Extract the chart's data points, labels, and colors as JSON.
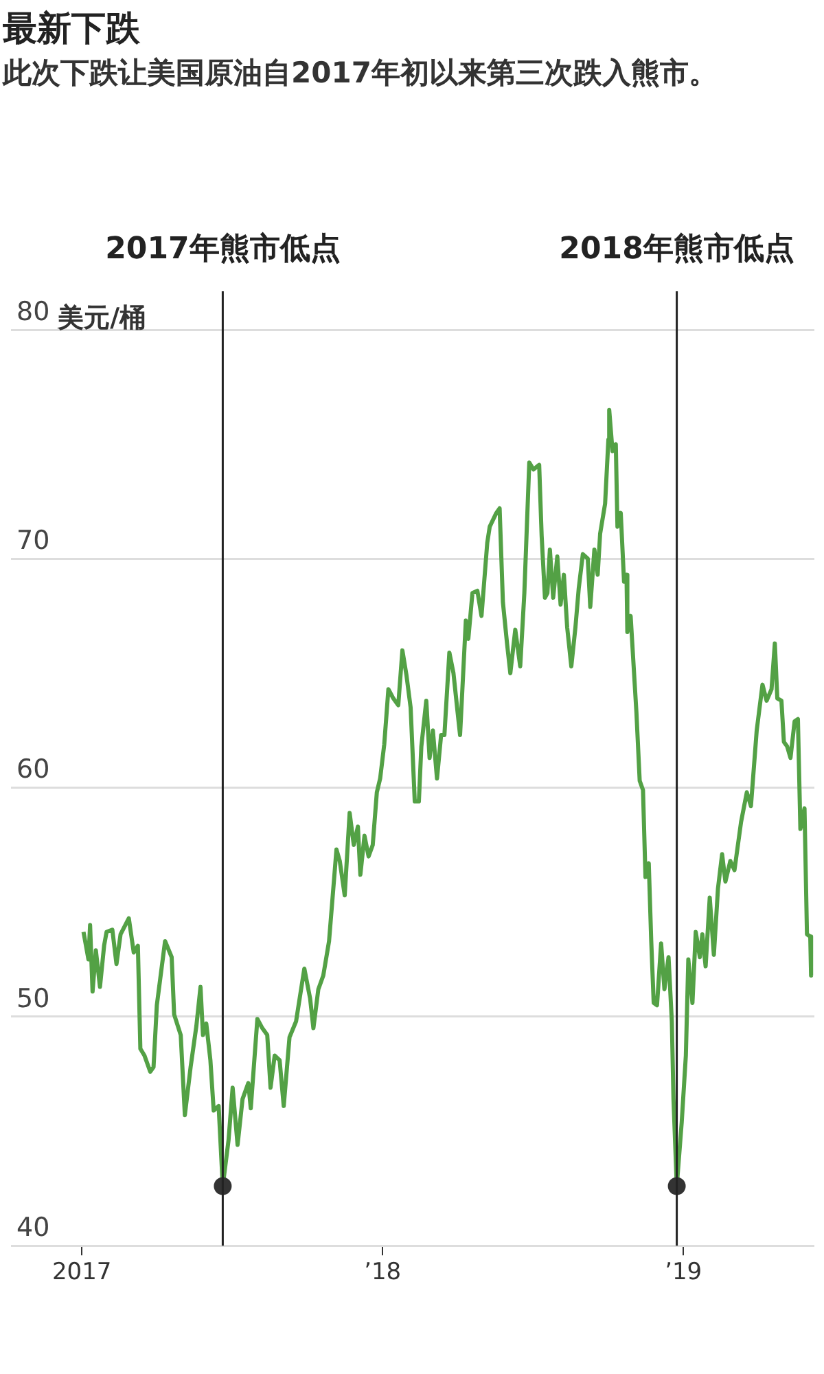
{
  "chart_data": {
    "type": "line",
    "title": "最新下跌",
    "subtitle": "此次下跌让美国原油自2017年初以来第三次跌入熊市。",
    "ylabel": "美元/桶",
    "xlim": [
      "2016-10-07",
      "2019-06-09"
    ],
    "xticks": [
      {
        "value": "2017-01-01",
        "label": "2017"
      },
      {
        "value": "2018-01-01",
        "label": "’18"
      },
      {
        "value": "2019-01-01",
        "label": "’19"
      }
    ],
    "ylim": [
      40,
      80
    ],
    "yticks": [
      40,
      50,
      60,
      70,
      80
    ],
    "grid": "y",
    "ref_lines": [
      {
        "axis": "x",
        "value": "2017-06-21",
        "label": "2017年熊市低点",
        "color": "#222222"
      },
      {
        "axis": "x",
        "value": "2018-12-24",
        "label": "2018年熊市低点",
        "color": "#222222"
      }
    ],
    "series": [
      {
        "type": "line",
        "color": "#53a145",
        "line_style": "solid",
        "marker": "none",
        "x": [
          "2017-01-03",
          "2017-01-09",
          "2017-01-11",
          "2017-01-14",
          "2017-01-18",
          "2017-01-23",
          "2017-01-28",
          "2017-01-31",
          "2017-02-07",
          "2017-02-12",
          "2017-02-17",
          "2017-02-27",
          "2017-03-05",
          "2017-03-10",
          "2017-03-13",
          "2017-03-18",
          "2017-03-25",
          "2017-03-29",
          "2017-04-02",
          "2017-04-12",
          "2017-04-20",
          "2017-04-23",
          "2017-05-01",
          "2017-05-06",
          "2017-05-13",
          "2017-05-20",
          "2017-05-25",
          "2017-05-28",
          "2017-06-01",
          "2017-06-06",
          "2017-06-10",
          "2017-06-16",
          "2017-06-21",
          "2017-06-28",
          "2017-07-03",
          "2017-07-09",
          "2017-07-15",
          "2017-07-22",
          "2017-07-25",
          "2017-08-02",
          "2017-08-08",
          "2017-08-14",
          "2017-08-18",
          "2017-08-23",
          "2017-08-29",
          "2017-09-03",
          "2017-09-10",
          "2017-09-18",
          "2017-09-28",
          "2017-10-05",
          "2017-10-09",
          "2017-10-15",
          "2017-10-21",
          "2017-10-28",
          "2017-11-06",
          "2017-11-10",
          "2017-11-16",
          "2017-11-22",
          "2017-11-27",
          "2017-12-02",
          "2017-12-05",
          "2017-12-10",
          "2017-12-15",
          "2017-12-20",
          "2017-12-25",
          "2017-12-29",
          "2018-01-03",
          "2018-01-08",
          "2018-01-14",
          "2018-01-20",
          "2018-01-25",
          "2018-01-30",
          "2018-02-04",
          "2018-02-09",
          "2018-02-14",
          "2018-02-17",
          "2018-02-23",
          "2018-02-27",
          "2018-03-03",
          "2018-03-08",
          "2018-03-13",
          "2018-03-17",
          "2018-03-23",
          "2018-03-28",
          "2018-04-02",
          "2018-04-05",
          "2018-04-12",
          "2018-04-15",
          "2018-04-20",
          "2018-04-26",
          "2018-05-01",
          "2018-05-08",
          "2018-05-11",
          "2018-05-19",
          "2018-05-23",
          "2018-05-27",
          "2018-06-01",
          "2018-06-05",
          "2018-06-11",
          "2018-06-17",
          "2018-06-22",
          "2018-06-28",
          "2018-07-03",
          "2018-07-10",
          "2018-07-13",
          "2018-07-17",
          "2018-07-20",
          "2018-07-23",
          "2018-07-27",
          "2018-08-01",
          "2018-08-05",
          "2018-08-09",
          "2018-08-13",
          "2018-08-18",
          "2018-08-23",
          "2018-08-27",
          "2018-09-01",
          "2018-09-07",
          "2018-09-10",
          "2018-09-15",
          "2018-09-19",
          "2018-09-22",
          "2018-09-28",
          "2018-10-02",
          "2018-10-03",
          "2018-10-07",
          "2018-10-11",
          "2018-10-13",
          "2018-10-17",
          "2018-10-21",
          "2018-10-24",
          "2018-10-25",
          "2018-10-29",
          "2018-11-05",
          "2018-11-09",
          "2018-11-13",
          "2018-11-16",
          "2018-11-20",
          "2018-11-23",
          "2018-11-26",
          "2018-11-30",
          "2018-12-05",
          "2018-12-09",
          "2018-12-14",
          "2018-12-18",
          "2018-12-20",
          "2018-12-24",
          "2018-12-30",
          "2019-01-04",
          "2019-01-07",
          "2019-01-12",
          "2019-01-16",
          "2019-01-21",
          "2019-01-24",
          "2019-01-28",
          "2019-02-02",
          "2019-02-07",
          "2019-02-12",
          "2019-02-17",
          "2019-02-21",
          "2019-02-27",
          "2019-03-04",
          "2019-03-12",
          "2019-03-19",
          "2019-03-24",
          "2019-03-31",
          "2019-04-07",
          "2019-04-12",
          "2019-04-18",
          "2019-04-22",
          "2019-04-25",
          "2019-04-30",
          "2019-05-03",
          "2019-05-07",
          "2019-05-11",
          "2019-05-16",
          "2019-05-20",
          "2019-05-23",
          "2019-05-28",
          "2019-05-31",
          "2019-06-04",
          "2019-06-05"
        ],
        "values": [
          53.7,
          52.5,
          54.0,
          51.1,
          52.9,
          51.3,
          53.1,
          53.7,
          53.8,
          52.3,
          53.6,
          54.3,
          52.8,
          53.1,
          48.6,
          48.3,
          47.6,
          47.8,
          50.5,
          53.3,
          52.6,
          50.1,
          49.2,
          45.7,
          47.8,
          49.6,
          51.3,
          49.2,
          49.7,
          48.1,
          45.9,
          46.1,
          42.6,
          44.6,
          46.9,
          44.4,
          46.4,
          47.1,
          46.0,
          49.9,
          49.5,
          49.2,
          46.9,
          48.3,
          48.1,
          46.1,
          49.1,
          49.8,
          52.1,
          50.8,
          49.5,
          51.2,
          51.8,
          53.3,
          57.3,
          56.8,
          55.3,
          58.9,
          57.5,
          58.3,
          56.2,
          57.9,
          57.0,
          57.5,
          59.8,
          60.4,
          61.9,
          64.3,
          63.9,
          63.6,
          66.0,
          64.9,
          63.5,
          59.4,
          59.4,
          61.8,
          63.8,
          61.3,
          62.5,
          60.4,
          62.3,
          62.3,
          65.9,
          65.0,
          63.3,
          62.3,
          67.3,
          66.5,
          68.5,
          68.6,
          67.5,
          70.7,
          71.4,
          72.0,
          72.2,
          68.1,
          66.3,
          65.0,
          66.9,
          65.3,
          68.5,
          74.2,
          73.9,
          74.1,
          71.0,
          68.3,
          68.5,
          70.4,
          68.3,
          70.1,
          68.0,
          69.3,
          67.0,
          65.3,
          67.0,
          68.7,
          70.2,
          70.0,
          67.9,
          70.4,
          69.3,
          71.1,
          72.4,
          75.2,
          76.5,
          74.7,
          75.0,
          71.4,
          72.0,
          69.0,
          69.3,
          66.8,
          67.5,
          63.3,
          60.3,
          59.9,
          56.1,
          56.7,
          53.3,
          50.6,
          50.5,
          53.2,
          51.2,
          52.6,
          49.8,
          46.4,
          42.6,
          45.4,
          48.3,
          52.5,
          50.6,
          53.7,
          52.6,
          53.6,
          52.2,
          55.2,
          52.7,
          55.6,
          57.1,
          55.9,
          56.8,
          56.4,
          58.5,
          59.8,
          59.2,
          62.5,
          64.5,
          63.8,
          64.3,
          66.3,
          63.9,
          63.8,
          62.0,
          61.8,
          61.3,
          62.9,
          63.0,
          58.2,
          59.1,
          53.6,
          53.5,
          51.8
        ]
      },
      {
        "type": "scatter",
        "color": "#333333",
        "marker": "circle",
        "x": [
          "2017-06-21",
          "2018-12-24"
        ],
        "values": [
          42.6,
          42.6
        ]
      }
    ]
  }
}
